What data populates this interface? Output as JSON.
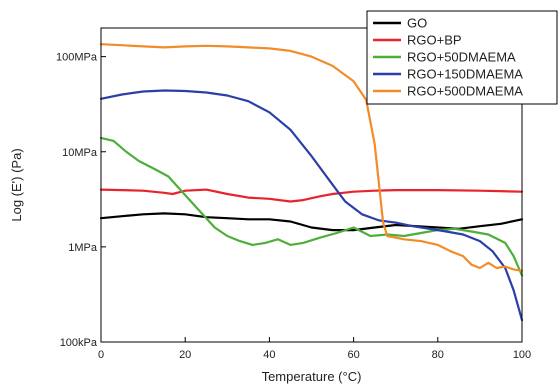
{
  "chart_data": {
    "type": "line",
    "title": "",
    "xlabel": "Temperature (°C)",
    "ylabel": "Log (E') (Pa)",
    "xlim": [
      0,
      100
    ],
    "ylim": [
      100000,
      200000000
    ],
    "yscale": "log",
    "grid": false,
    "legend_position": "top-right",
    "x_ticks": [
      0,
      20,
      40,
      60,
      80,
      100
    ],
    "y_ticks": [
      {
        "value": 100000,
        "label": "100kPa"
      },
      {
        "value": 1000000,
        "label": "1MPa"
      },
      {
        "value": 10000000,
        "label": "10MPa"
      },
      {
        "value": 100000000,
        "label": "100MPa"
      }
    ],
    "series": [
      {
        "name": "GO",
        "color": "#000000",
        "points": [
          [
            0,
            2000000
          ],
          [
            5,
            2100000
          ],
          [
            10,
            2200000
          ],
          [
            15,
            2250000
          ],
          [
            20,
            2200000
          ],
          [
            25,
            2050000
          ],
          [
            30,
            2000000
          ],
          [
            35,
            1950000
          ],
          [
            40,
            1950000
          ],
          [
            45,
            1850000
          ],
          [
            50,
            1600000
          ],
          [
            55,
            1500000
          ],
          [
            60,
            1500000
          ],
          [
            65,
            1600000
          ],
          [
            70,
            1700000
          ],
          [
            75,
            1650000
          ],
          [
            80,
            1600000
          ],
          [
            85,
            1550000
          ],
          [
            90,
            1650000
          ],
          [
            95,
            1750000
          ],
          [
            100,
            1950000
          ]
        ]
      },
      {
        "name": "RGO+BP",
        "color": "#e8232a",
        "points": [
          [
            0,
            4000000
          ],
          [
            5,
            3950000
          ],
          [
            10,
            3900000
          ],
          [
            15,
            3700000
          ],
          [
            17,
            3600000
          ],
          [
            20,
            3900000
          ],
          [
            25,
            4000000
          ],
          [
            30,
            3600000
          ],
          [
            35,
            3300000
          ],
          [
            40,
            3200000
          ],
          [
            45,
            3000000
          ],
          [
            48,
            3100000
          ],
          [
            52,
            3400000
          ],
          [
            55,
            3600000
          ],
          [
            60,
            3800000
          ],
          [
            65,
            3900000
          ],
          [
            70,
            3950000
          ],
          [
            80,
            3950000
          ],
          [
            90,
            3900000
          ],
          [
            100,
            3800000
          ]
        ]
      },
      {
        "name": "RGO+50DMAEMA",
        "color": "#4caf3a",
        "points": [
          [
            0,
            14000000
          ],
          [
            3,
            13000000
          ],
          [
            6,
            10000000
          ],
          [
            9,
            8000000
          ],
          [
            13,
            6500000
          ],
          [
            16,
            5500000
          ],
          [
            20,
            3500000
          ],
          [
            23,
            2500000
          ],
          [
            25,
            2000000
          ],
          [
            27,
            1600000
          ],
          [
            30,
            1300000
          ],
          [
            33,
            1150000
          ],
          [
            36,
            1050000
          ],
          [
            39,
            1100000
          ],
          [
            42,
            1200000
          ],
          [
            45,
            1050000
          ],
          [
            48,
            1100000
          ],
          [
            52,
            1250000
          ],
          [
            56,
            1400000
          ],
          [
            60,
            1600000
          ],
          [
            64,
            1300000
          ],
          [
            68,
            1350000
          ],
          [
            72,
            1300000
          ],
          [
            76,
            1400000
          ],
          [
            80,
            1500000
          ],
          [
            84,
            1550000
          ],
          [
            88,
            1450000
          ],
          [
            92,
            1350000
          ],
          [
            96,
            1100000
          ],
          [
            98,
            800000
          ],
          [
            100,
            500000
          ]
        ]
      },
      {
        "name": "RGO+150DMAEMA",
        "color": "#2a3fa8",
        "points": [
          [
            0,
            36000000
          ],
          [
            5,
            40000000
          ],
          [
            10,
            43000000
          ],
          [
            15,
            44000000
          ],
          [
            20,
            43500000
          ],
          [
            25,
            42000000
          ],
          [
            30,
            39000000
          ],
          [
            35,
            34000000
          ],
          [
            40,
            26000000
          ],
          [
            45,
            17000000
          ],
          [
            50,
            9000000
          ],
          [
            55,
            4500000
          ],
          [
            58,
            3000000
          ],
          [
            62,
            2200000
          ],
          [
            66,
            1900000
          ],
          [
            70,
            1800000
          ],
          [
            74,
            1650000
          ],
          [
            78,
            1550000
          ],
          [
            82,
            1450000
          ],
          [
            86,
            1350000
          ],
          [
            90,
            1150000
          ],
          [
            93,
            900000
          ],
          [
            96,
            600000
          ],
          [
            98,
            350000
          ],
          [
            100,
            170000
          ]
        ]
      },
      {
        "name": "RGO+500DMAEMA",
        "color": "#f28c28",
        "points": [
          [
            0,
            135000000
          ],
          [
            5,
            132000000
          ],
          [
            10,
            128000000
          ],
          [
            15,
            125000000
          ],
          [
            20,
            128000000
          ],
          [
            25,
            130000000
          ],
          [
            30,
            128000000
          ],
          [
            35,
            125000000
          ],
          [
            40,
            122000000
          ],
          [
            45,
            115000000
          ],
          [
            50,
            100000000
          ],
          [
            55,
            80000000
          ],
          [
            60,
            55000000
          ],
          [
            63,
            35000000
          ],
          [
            65,
            12000000
          ],
          [
            67,
            1800000
          ],
          [
            68,
            1300000
          ],
          [
            72,
            1200000
          ],
          [
            76,
            1150000
          ],
          [
            80,
            1050000
          ],
          [
            83,
            900000
          ],
          [
            86,
            800000
          ],
          [
            88,
            650000
          ],
          [
            90,
            600000
          ],
          [
            92,
            680000
          ],
          [
            94,
            600000
          ],
          [
            96,
            620000
          ],
          [
            98,
            580000
          ],
          [
            100,
            560000
          ]
        ]
      }
    ]
  }
}
